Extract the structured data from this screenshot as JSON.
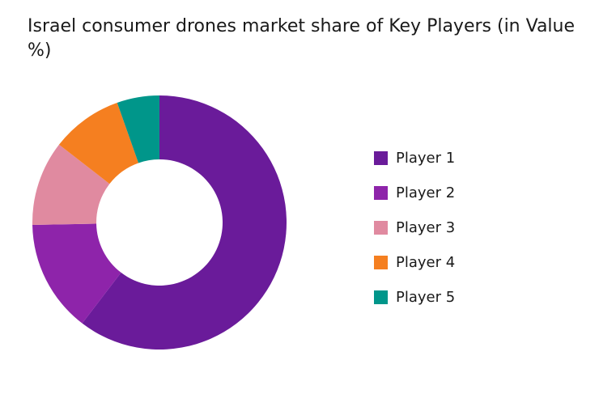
{
  "chart_data": {
    "type": "pie",
    "subtype": "donut",
    "title": "Israel consumer drones market share of Key Players (in Value %)",
    "categories": [
      "Player 1",
      "Player 2",
      "Player 3",
      "Player 4",
      "Player 5"
    ],
    "values": [
      60.4,
      14.3,
      10.8,
      9.1,
      5.4
    ],
    "unit": "%",
    "colors": [
      "#6a1b9a",
      "#8e24aa",
      "#e08aa0",
      "#f57f20",
      "#00968a"
    ],
    "legend_position": "right"
  }
}
